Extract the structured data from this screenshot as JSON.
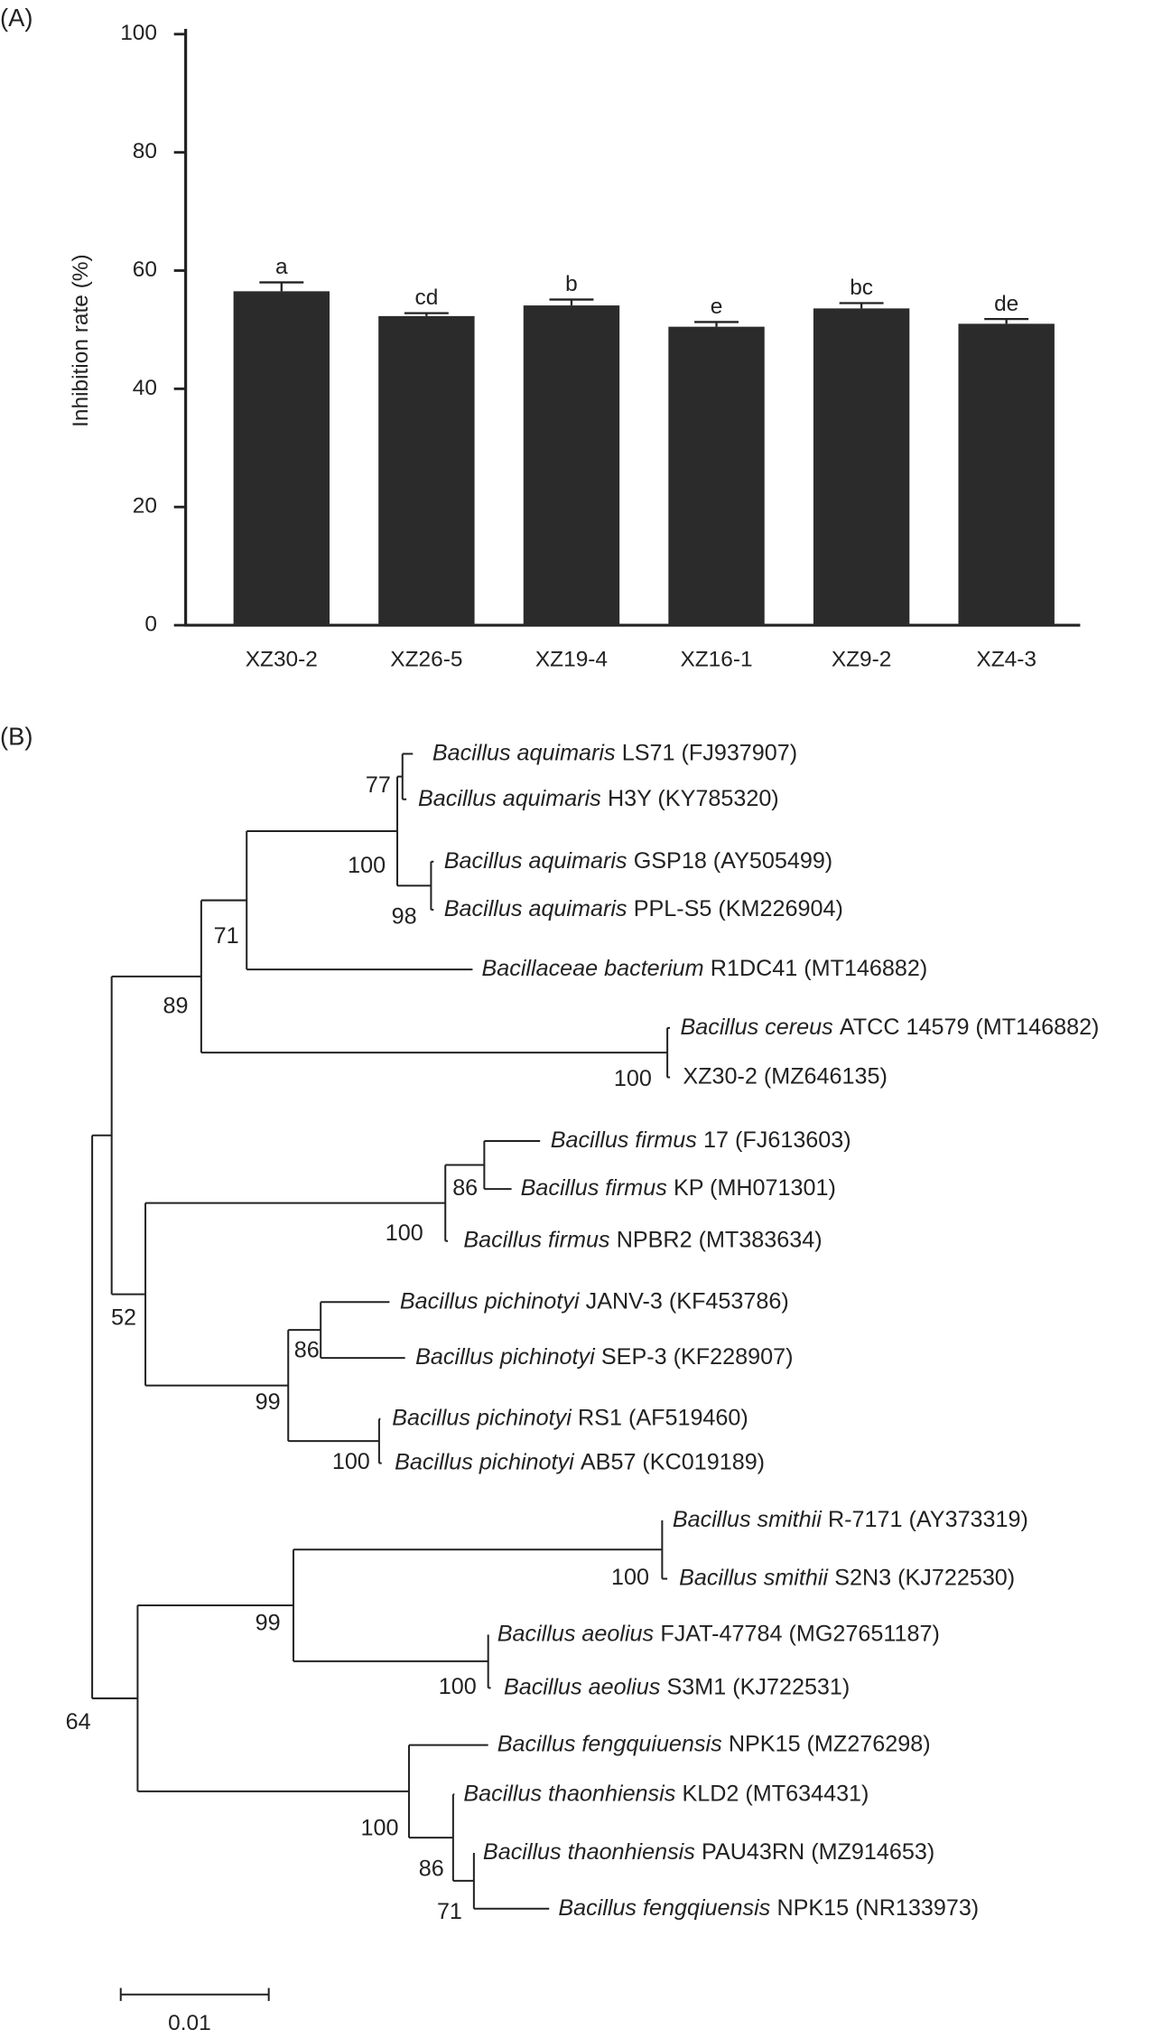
{
  "chart_data": {
    "type": "bar",
    "panel_label": "(A)",
    "y_label": "Inhibition rate (%)",
    "categories": [
      "XZ30-2",
      "XZ26-5",
      "XZ19-4",
      "XZ16-1",
      "XZ9-2",
      "XZ4-3"
    ],
    "values": [
      56.5,
      52.3,
      54.1,
      50.5,
      53.6,
      51.0
    ],
    "errors": [
      1.5,
      0.5,
      1.0,
      0.8,
      0.9,
      0.8
    ],
    "significance": [
      "a",
      "cd",
      "b",
      "e",
      "bc",
      "de"
    ],
    "color": "#2b2b2b",
    "ylim": [
      0,
      100
    ],
    "yticks": [
      0,
      20,
      40,
      60,
      80,
      100
    ],
    "grid": false
  },
  "tree": {
    "panel_label": "(B)",
    "leaves": [
      {
        "taxon": "Bacillus aquimaris",
        "strain": "LS71 (FJ937907)"
      },
      {
        "taxon": "Bacillus aquimaris",
        "strain": "H3Y (KY785320)"
      },
      {
        "taxon": "Bacillus aquimaris",
        "strain": "GSP18 (AY505499)"
      },
      {
        "taxon": "Bacillus aquimaris",
        "strain": "PPL-S5 (KM226904)"
      },
      {
        "taxon": "Bacillaceae bacterium",
        "strain": "R1DC41 (MT146882)"
      },
      {
        "taxon": "Bacillus cereus",
        "strain": "ATCC 14579 (MT146882)"
      },
      {
        "strain": "XZ30-2 (MZ646135)"
      },
      {
        "taxon": "Bacillus firmus",
        "strain": "17 (FJ613603)"
      },
      {
        "taxon": "Bacillus firmus",
        "strain": "KP (MH071301)"
      },
      {
        "taxon": "Bacillus firmus",
        "strain": "NPBR2 (MT383634)"
      },
      {
        "taxon": "Bacillus pichinotyi",
        "strain": "JANV-3 (KF453786)"
      },
      {
        "taxon": "Bacillus pichinotyi",
        "strain": "SEP-3 (KF228907)"
      },
      {
        "taxon": "Bacillus pichinotyi",
        "strain": "RS1 (AF519460)"
      },
      {
        "taxon": "Bacillus pichinotyi",
        "strain": "AB57 (KC019189)"
      },
      {
        "taxon": "Bacillus smithii",
        "strain": "R-7171 (AY373319)"
      },
      {
        "taxon": "Bacillus smithii",
        "strain": "S2N3 (KJ722530)"
      },
      {
        "taxon": "Bacillus aeolius",
        "strain": "FJAT-47784 (MG27651187)"
      },
      {
        "taxon": "Bacillus aeolius",
        "strain": "S3M1 (KJ722531)"
      },
      {
        "taxon": "Bacillus fengquiuensis",
        "strain": "NPK15 (MZ276298)"
      },
      {
        "taxon": "Bacillus thaonhiensis",
        "strain": "KLD2 (MT634431)"
      },
      {
        "taxon": "Bacillus thaonhiensis",
        "strain": "PAU43RN (MZ914653)"
      },
      {
        "taxon": "Bacillus fengqiuensis",
        "strain": "NPK15 (NR133973)"
      }
    ],
    "bootstrap": [
      77,
      100,
      98,
      71,
      89,
      100,
      86,
      100,
      86,
      99,
      100,
      52,
      100,
      99,
      100,
      100,
      86,
      71,
      64
    ],
    "scale_label": "0.01"
  }
}
